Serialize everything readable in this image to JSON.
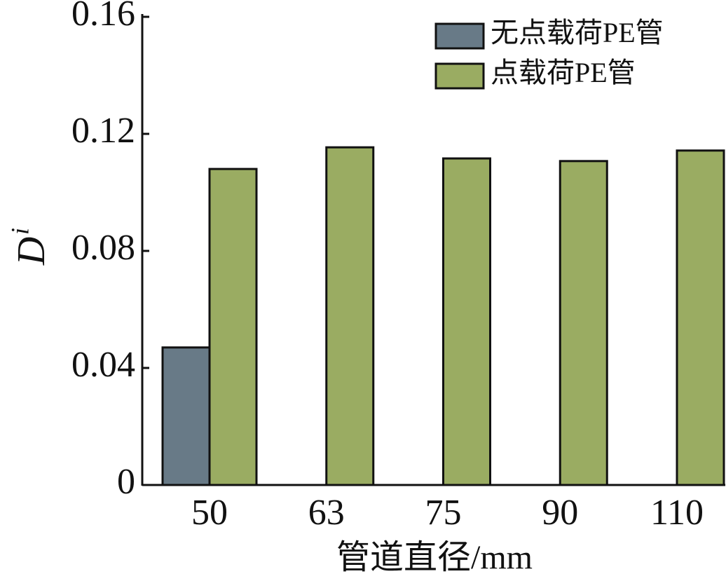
{
  "chart_data": {
    "type": "bar",
    "categories": [
      "50",
      "63",
      "75",
      "90",
      "110"
    ],
    "series": [
      {
        "name": "无点载荷PE管",
        "color": "#687a87",
        "values": [
          0.047,
          null,
          null,
          null,
          null
        ]
      },
      {
        "name": "点载荷PE管",
        "color": "#9aac62",
        "values": [
          0.108,
          0.1154,
          0.1116,
          0.1107,
          0.1143
        ]
      }
    ],
    "ylim": [
      0,
      0.16
    ],
    "yticks": [
      0,
      0.04,
      0.08,
      0.12,
      0.16
    ],
    "y_label": "D",
    "y_label_subscript": "i",
    "x_label": "管道直径/mm",
    "legend": "top-right"
  }
}
